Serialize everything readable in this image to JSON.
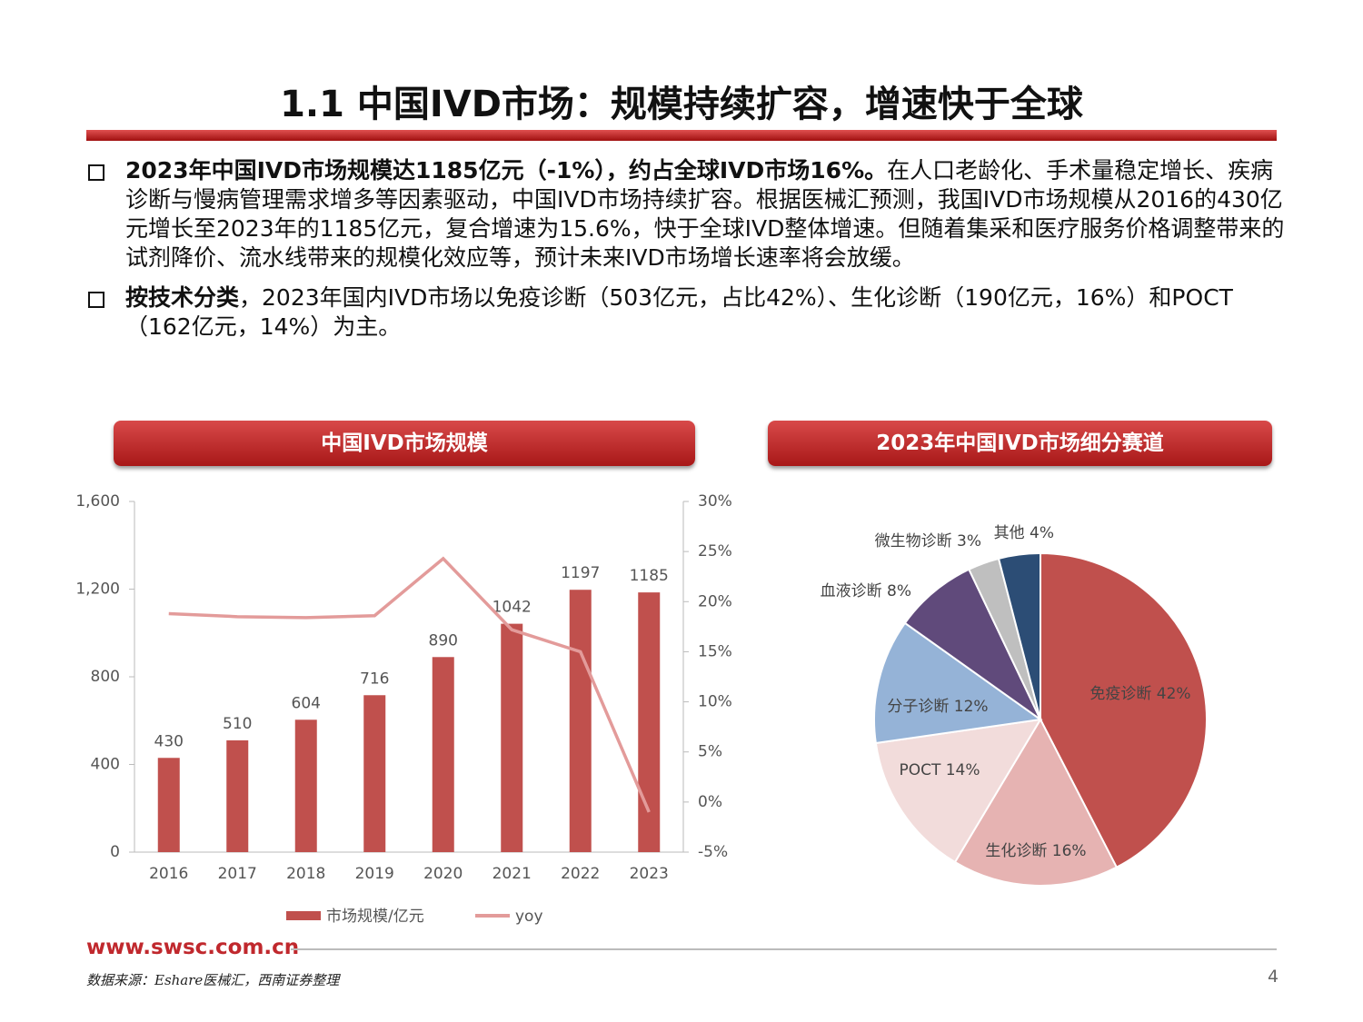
{
  "header": {
    "title": "1.1 中国IVD市场：规模持续扩容，增速快于全球"
  },
  "bullets": [
    {
      "bold": "2023年中国IVD市场规模达1185亿元（-1%），约占全球IVD市场16%。",
      "text": "在人口老龄化、手术量稳定增长、疾病诊断与慢病管理需求增多等因素驱动，中国IVD市场持续扩容。根据医械汇预测，我国IVD市场规模从2016的430亿元增长至2023年的1185亿元，复合增速为15.6%，快于全球IVD整体增速。但随着集采和医疗服务价格调整带来的试剂降价、流水线带来的规模化效应等，预计未来IVD市场增长速率将会放缓。"
    },
    {
      "bold": "按技术分类",
      "text": "，2023年国内IVD市场以免疫诊断（503亿元，占比42%）、生化诊断（190亿元，16%）和POCT（162亿元，14%）为主。"
    }
  ],
  "chart_data": [
    {
      "type": "bar",
      "title": "中国IVD市场规模",
      "categories": [
        "2016",
        "2017",
        "2018",
        "2019",
        "2020",
        "2021",
        "2022",
        "2023"
      ],
      "series": [
        {
          "name": "市场规模/亿元",
          "color": "#c0504d",
          "type": "bar",
          "values": [
            430,
            510,
            604,
            716,
            890,
            1042,
            1197,
            1185
          ]
        },
        {
          "name": "yoy",
          "color": "#e39b9a",
          "type": "line",
          "axis": "y2",
          "values": [
            18.8,
            18.5,
            18.4,
            18.6,
            24.3,
            17.2,
            15.0,
            -1.0
          ]
        }
      ],
      "ylim": [
        0,
        1600
      ],
      "yticks": [
        0,
        400,
        800,
        {
          "value": 1200,
          "label": "1,200"
        },
        {
          "value": 1600,
          "label": "1,600"
        }
      ],
      "y2lim": [
        -5,
        30
      ],
      "y2ticks": [
        {
          "value": -5,
          "label": "-5%"
        },
        {
          "value": 0,
          "label": "0%"
        },
        {
          "value": 5,
          "label": "5%"
        },
        {
          "value": 10,
          "label": "10%"
        },
        {
          "value": 15,
          "label": "15%"
        },
        {
          "value": 20,
          "label": "20%"
        },
        {
          "value": 25,
          "label": "25%"
        },
        {
          "value": 30,
          "label": "30%"
        }
      ],
      "legend": "bottom"
    },
    {
      "type": "pie",
      "title": "2023年中国IVD市场细分赛道",
      "values": [
        42,
        16,
        14,
        12,
        8,
        3,
        4
      ],
      "value_labels": [
        "免疫诊断 42%",
        "生化诊断 16%",
        "POCT 14%",
        "分子诊断 12%",
        "血液诊断 8%",
        "微生物诊断 3%",
        "其他 4%"
      ],
      "colors": [
        "#c0504d",
        "#e6b3b2",
        "#f2dcdb",
        "#95b3d7",
        "#604a7b",
        "#bfbfbf",
        "#2c4d75"
      ]
    }
  ],
  "footer": {
    "url": "www.swsc.com.cn",
    "source": "数据来源：Eshare医械汇，西南证券整理",
    "page": "4"
  }
}
